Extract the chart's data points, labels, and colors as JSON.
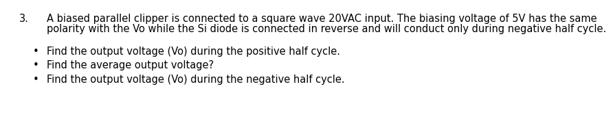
{
  "number": "3.",
  "paragraph_line1": "A biased parallel clipper is connected to a square wave 20VAC input. The biasing voltage of 5V has the same",
  "paragraph_line2": "polarity with the Vo while the Si diode is connected in reverse and will conduct only during negative half cycle.",
  "bullets": [
    "Find the output voltage (Vo) during the positive half cycle.",
    "Find the average output voltage?",
    "Find the output voltage (Vo) during the negative half cycle."
  ],
  "background_color": "#ffffff",
  "text_color": "#000000",
  "font_size": 10.5
}
